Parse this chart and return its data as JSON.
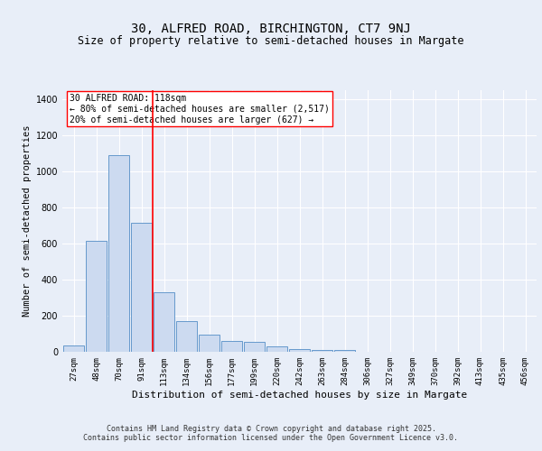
{
  "title1": "30, ALFRED ROAD, BIRCHINGTON, CT7 9NJ",
  "title2": "Size of property relative to semi-detached houses in Margate",
  "xlabel": "Distribution of semi-detached houses by size in Margate",
  "ylabel": "Number of semi-detached properties",
  "categories": [
    "27sqm",
    "48sqm",
    "70sqm",
    "91sqm",
    "113sqm",
    "134sqm",
    "156sqm",
    "177sqm",
    "199sqm",
    "220sqm",
    "242sqm",
    "263sqm",
    "284sqm",
    "306sqm",
    "327sqm",
    "349sqm",
    "370sqm",
    "392sqm",
    "413sqm",
    "435sqm",
    "456sqm"
  ],
  "values": [
    35,
    615,
    1090,
    715,
    330,
    170,
    95,
    60,
    55,
    30,
    15,
    10,
    10,
    0,
    0,
    0,
    0,
    0,
    0,
    0,
    0
  ],
  "bar_color": "#ccdaf0",
  "bar_edge_color": "#6699cc",
  "red_line_x": 3.5,
  "annotation_title": "30 ALFRED ROAD: 118sqm",
  "annotation_line1": "← 80% of semi-detached houses are smaller (2,517)",
  "annotation_line2": "20% of semi-detached houses are larger (627) →",
  "ylim": [
    0,
    1450
  ],
  "yticks": [
    0,
    200,
    400,
    600,
    800,
    1000,
    1200,
    1400
  ],
  "footer1": "Contains HM Land Registry data © Crown copyright and database right 2025.",
  "footer2": "Contains public sector information licensed under the Open Government Licence v3.0.",
  "bg_color": "#e8eef8",
  "plot_bg_color": "#e8eef8",
  "title_fontsize": 10,
  "subtitle_fontsize": 8.5,
  "ylabel_fontsize": 7.5,
  "xlabel_fontsize": 8,
  "tick_fontsize": 6.5,
  "ann_fontsize": 7,
  "footer_fontsize": 6
}
